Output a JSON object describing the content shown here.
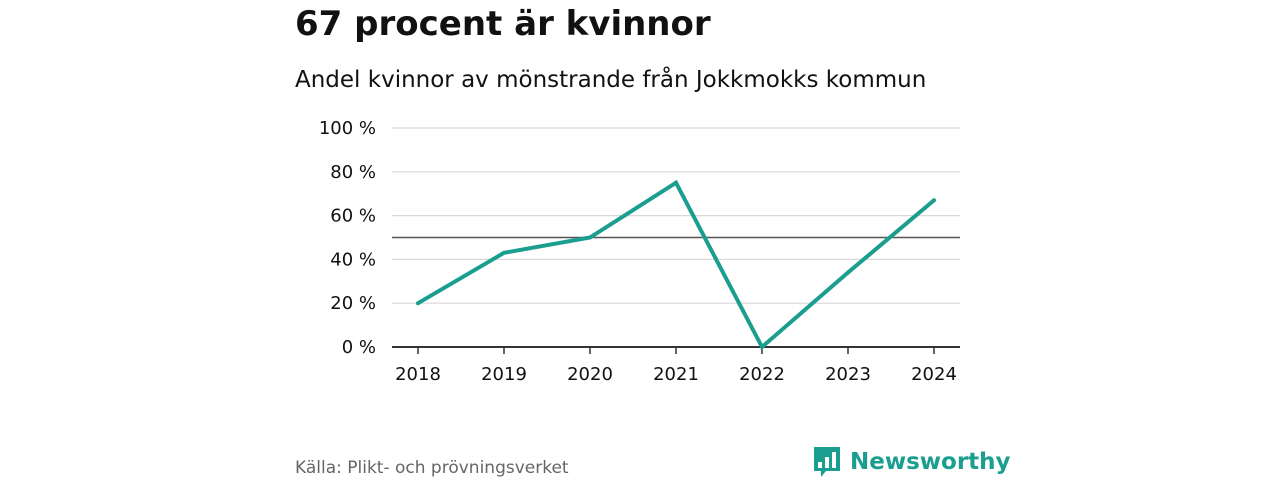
{
  "header": {
    "title": "67 procent är kvinnor",
    "subtitle": "Andel kvinnor av mönstrande från Jokkmokks kommun"
  },
  "footer": {
    "source": "Källa: Plikt- och prövningsverket",
    "brand": "Newsworthy"
  },
  "colors": {
    "line": "#1a9e8f",
    "grid": "#d9d9d9",
    "reference": "#555555",
    "axis": "#333333",
    "brand": "#1a9e8f"
  },
  "icons": {
    "brand_logo": "bar-chart-speech-bubble-icon"
  },
  "chart_data": {
    "type": "line",
    "title": "67 procent är kvinnor",
    "subtitle": "Andel kvinnor av mönstrande från Jokkmokks kommun",
    "xlabel": "",
    "ylabel": "",
    "x": [
      "2018",
      "2019",
      "2020",
      "2021",
      "2022",
      "2023",
      "2024"
    ],
    "series": [
      {
        "values": [
          20,
          43,
          50,
          75,
          0,
          34,
          67
        ]
      }
    ],
    "y_ticks": [
      0,
      20,
      40,
      60,
      80,
      100
    ],
    "y_tick_labels": [
      "0 %",
      "20 %",
      "40 %",
      "60 %",
      "80 %",
      "100 %"
    ],
    "ylim": [
      0,
      100
    ],
    "reference_line": 50,
    "grid": true,
    "legend": "none"
  }
}
